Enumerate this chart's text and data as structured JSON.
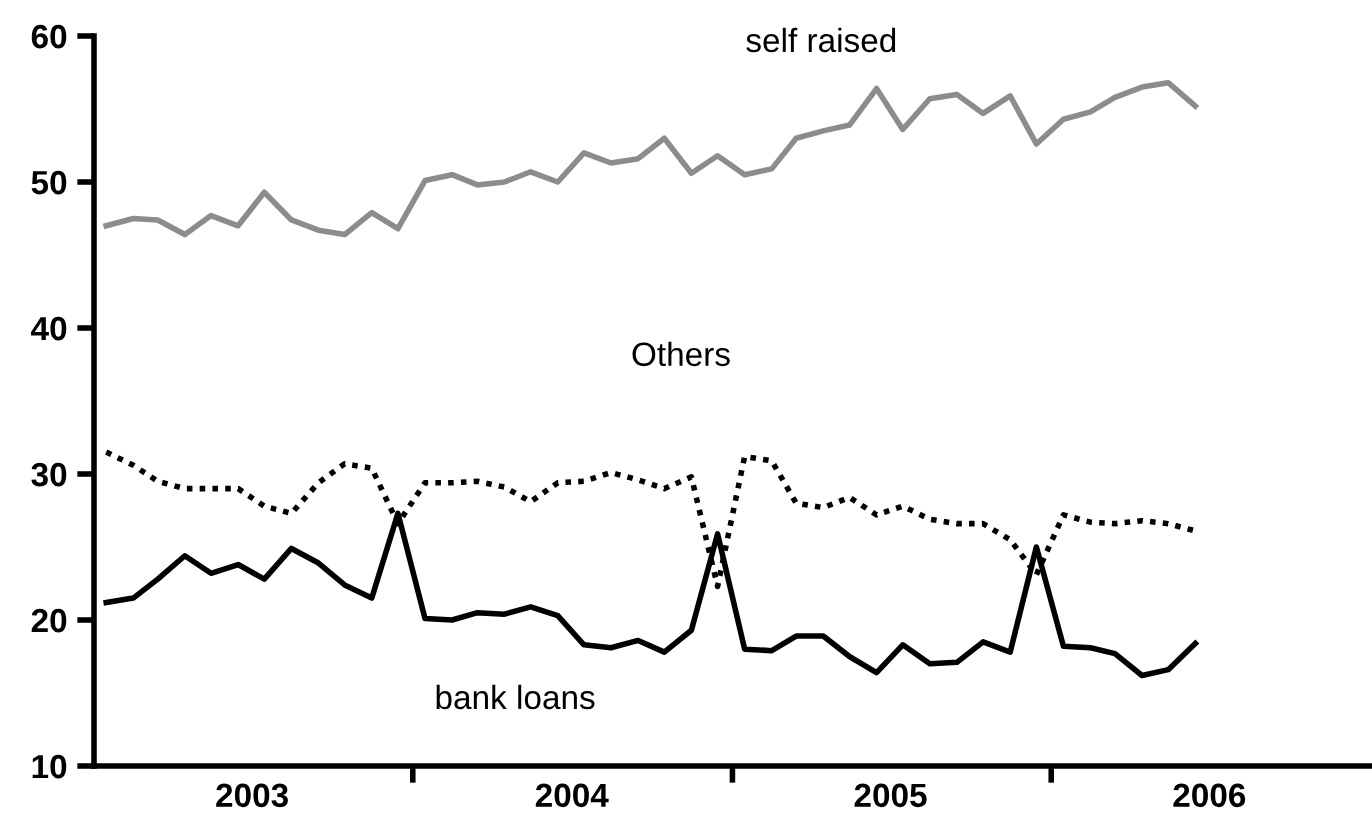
{
  "chart_data": {
    "type": "line",
    "x": [
      "2003-01-15",
      "2003-02-15",
      "2003-03-15",
      "2003-04-15",
      "2003-05-15",
      "2003-06-15",
      "2003-07-15",
      "2003-08-15",
      "2003-09-15",
      "2003-10-15",
      "2003-11-15",
      "2003-12-15",
      "2004-01-15",
      "2004-02-15",
      "2004-03-15",
      "2004-04-15",
      "2004-05-15",
      "2004-06-15",
      "2004-07-15",
      "2004-08-15",
      "2004-09-15",
      "2004-10-15",
      "2004-11-15",
      "2004-12-15",
      "2005-01-15",
      "2005-02-15",
      "2005-03-15",
      "2005-04-15",
      "2005-05-15",
      "2005-06-15",
      "2005-07-15",
      "2005-08-15",
      "2005-09-15",
      "2005-10-15",
      "2005-11-15",
      "2005-12-15",
      "2006-01-15",
      "2006-02-15",
      "2006-03-15",
      "2006-04-15",
      "2006-05-15",
      "2006-06-15"
    ],
    "series": [
      {
        "name": "self raised",
        "color": "#8c8c8c",
        "line_style": "solid",
        "values": [
          47.0,
          47.5,
          47.4,
          46.4,
          47.7,
          47.0,
          49.3,
          47.4,
          46.7,
          46.4,
          47.9,
          46.8,
          50.1,
          50.5,
          49.8,
          50.0,
          50.7,
          50.0,
          52.0,
          51.3,
          51.6,
          53.0,
          50.6,
          51.8,
          50.5,
          50.9,
          53.0,
          53.5,
          53.9,
          56.4,
          53.6,
          55.7,
          56.0,
          54.7,
          55.9,
          52.6,
          54.3,
          54.8,
          55.8,
          56.5,
          56.8,
          55.2
        ]
      },
      {
        "name": "Others",
        "color": "#000000",
        "line_style": "dotted",
        "values": [
          31.5,
          30.6,
          29.5,
          29.0,
          29.0,
          29.0,
          27.8,
          27.3,
          29.4,
          30.7,
          30.4,
          26.6,
          29.4,
          29.4,
          29.5,
          29.1,
          28.1,
          29.4,
          29.5,
          30.1,
          29.6,
          29.0,
          29.8,
          22.3,
          31.2,
          30.9,
          28.0,
          27.7,
          28.4,
          27.2,
          27.8,
          26.9,
          26.6,
          26.6,
          25.5,
          23.1,
          27.2,
          26.7,
          26.6,
          26.8,
          26.6,
          26.1
        ]
      },
      {
        "name": "bank loans",
        "color": "#000000",
        "line_style": "solid",
        "values": [
          21.2,
          21.5,
          22.8,
          24.4,
          23.2,
          23.8,
          22.8,
          24.9,
          23.9,
          22.4,
          21.5,
          27.3,
          20.1,
          20.0,
          20.5,
          20.4,
          20.9,
          20.3,
          18.3,
          18.1,
          18.6,
          17.8,
          19.3,
          25.9,
          18.0,
          17.9,
          18.9,
          18.9,
          17.5,
          16.4,
          18.3,
          17.0,
          17.1,
          18.5,
          17.8,
          25.0,
          18.2,
          18.1,
          17.7,
          16.2,
          16.6,
          18.4
        ]
      }
    ],
    "xlim": [
      "2003-01-01",
      "2007-01-01"
    ],
    "xticks": [
      {
        "value": "2004-01-01",
        "label": null
      },
      {
        "value": "2005-01-01",
        "label": null
      },
      {
        "value": "2006-01-01",
        "label": null
      },
      {
        "value": "2003-07-01",
        "label": "2003"
      },
      {
        "value": "2004-07-01",
        "label": "2004"
      },
      {
        "value": "2005-07-01",
        "label": "2005"
      },
      {
        "value": "2006-07-01",
        "label": "2006"
      }
    ],
    "ylim": [
      10,
      60
    ],
    "yticks": [
      10,
      20,
      30,
      40,
      50,
      60
    ],
    "grid": false,
    "legend": false,
    "marker": "none"
  }
}
